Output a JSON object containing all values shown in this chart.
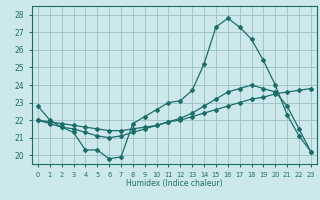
{
  "bg_color": "#cde8eb",
  "grid_color": "#9bbfc4",
  "line_color": "#1a6e6a",
  "xlabel": "Humidex (Indice chaleur)",
  "xlim": [
    -0.5,
    23.5
  ],
  "ylim": [
    19.5,
    28.5
  ],
  "yticks": [
    20,
    21,
    22,
    23,
    24,
    25,
    26,
    27,
    28
  ],
  "xticks": [
    0,
    1,
    2,
    3,
    4,
    5,
    6,
    7,
    8,
    9,
    10,
    11,
    12,
    13,
    14,
    15,
    16,
    17,
    18,
    19,
    20,
    21,
    22,
    23
  ],
  "line1_x": [
    0,
    1,
    2,
    3,
    4,
    5,
    6,
    7,
    8,
    9,
    10,
    11,
    12,
    13,
    14,
    15,
    16,
    17,
    18,
    19,
    20,
    21,
    22,
    23
  ],
  "line1_y": [
    22.8,
    22.0,
    21.6,
    21.3,
    20.3,
    20.3,
    19.8,
    19.9,
    21.8,
    22.2,
    22.6,
    23.0,
    23.1,
    23.7,
    25.2,
    27.3,
    27.8,
    27.3,
    26.6,
    25.4,
    24.0,
    22.3,
    21.1,
    20.2
  ],
  "line2_x": [
    0,
    1,
    2,
    3,
    4,
    5,
    6,
    7,
    8,
    9,
    10,
    11,
    12,
    13,
    14,
    15,
    16,
    17,
    18,
    19,
    20,
    21,
    22,
    23
  ],
  "line2_y": [
    22.0,
    21.8,
    21.6,
    21.5,
    21.3,
    21.1,
    21.0,
    21.1,
    21.3,
    21.5,
    21.7,
    21.9,
    22.1,
    22.4,
    22.8,
    23.2,
    23.6,
    23.8,
    24.0,
    23.8,
    23.6,
    22.8,
    21.5,
    20.2
  ],
  "line3_x": [
    0,
    1,
    2,
    3,
    4,
    5,
    6,
    7,
    8,
    9,
    10,
    11,
    12,
    13,
    14,
    15,
    16,
    17,
    18,
    19,
    20,
    21,
    22,
    23
  ],
  "line3_y": [
    22.0,
    21.9,
    21.8,
    21.7,
    21.6,
    21.5,
    21.4,
    21.4,
    21.5,
    21.6,
    21.7,
    21.9,
    22.0,
    22.2,
    22.4,
    22.6,
    22.8,
    23.0,
    23.2,
    23.3,
    23.5,
    23.6,
    23.7,
    23.8
  ]
}
